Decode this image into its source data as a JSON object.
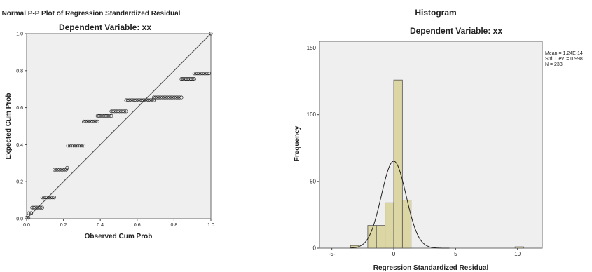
{
  "chart_data": [
    {
      "type": "scatter",
      "title": "Normal P-P Plot of Regression Standardized Residual",
      "subtitle": "Dependent Variable: xx",
      "xlabel": "Observed Cum Prob",
      "ylabel": "Expected Cum Prob",
      "xlim": [
        0,
        1
      ],
      "ylim": [
        0,
        1
      ],
      "xticks": [
        "0.0",
        "0.2",
        "0.4",
        "0.6",
        "0.8",
        "1.0"
      ],
      "yticks": [
        "0.0",
        "0.2",
        "0.4",
        "0.6",
        "0.8",
        "1.0"
      ],
      "reference_line": [
        [
          0,
          0
        ],
        [
          1,
          1
        ]
      ],
      "grid": false,
      "segments": [
        {
          "x": [
            0.0,
            0.01
          ],
          "y": 0.005
        },
        {
          "x": [
            0.012,
            0.025
          ],
          "y": 0.03
        },
        {
          "x": [
            0.03,
            0.085
          ],
          "y": 0.06
        },
        {
          "x": [
            0.085,
            0.15
          ],
          "y": 0.115
        },
        {
          "x": [
            0.15,
            0.215
          ],
          "y": 0.265
        },
        {
          "x": [
            0.225,
            0.31
          ],
          "y": 0.395
        },
        {
          "x": [
            0.31,
            0.385
          ],
          "y": 0.525
        },
        {
          "x": [
            0.385,
            0.46
          ],
          "y": 0.555
        },
        {
          "x": [
            0.46,
            0.54
          ],
          "y": 0.58
        },
        {
          "x": [
            0.54,
            0.69
          ],
          "y": 0.64
        },
        {
          "x": [
            0.69,
            0.84
          ],
          "y": 0.655
        },
        {
          "x": [
            0.84,
            0.91
          ],
          "y": 0.755
        },
        {
          "x": [
            0.91,
            0.99
          ],
          "y": 0.785
        }
      ],
      "extra_points": [
        [
          0.22,
          0.275
        ],
        [
          1.0,
          1.0
        ]
      ]
    },
    {
      "type": "bar",
      "title": "Histogram",
      "subtitle": "Dependent Variable: xx",
      "xlabel": "Regression Standardized Residual",
      "ylabel": "Frequency",
      "xlim": [
        -6,
        12
      ],
      "ylim": [
        0,
        155
      ],
      "xticks": [
        {
          "value": -5,
          "label": "-5-"
        },
        {
          "value": 0,
          "label": "0"
        },
        {
          "value": 5,
          "label": "5"
        },
        {
          "value": 10,
          "label": "10"
        }
      ],
      "yticks": [
        0,
        50,
        100,
        150
      ],
      "bin_width": 0.7,
      "bins": [
        {
          "start": -3.5,
          "count": 2
        },
        {
          "start": -2.1,
          "count": 17
        },
        {
          "start": -1.4,
          "count": 17
        },
        {
          "start": -0.7,
          "count": 34
        },
        {
          "start": 0.0,
          "count": 126
        },
        {
          "start": 0.7,
          "count": 36
        },
        {
          "start": 9.8,
          "count": 1
        }
      ],
      "normal_curve": {
        "mean": 0,
        "sd": 0.998,
        "n": 233
      },
      "stats": {
        "mean": "Mean = 1.24E-14",
        "sd": "Std. Dev. = 0.998",
        "n": "N = 233"
      },
      "colors": {
        "bar_fill": "#dcd5a4",
        "bar_stroke": "#555555",
        "plot_bg": "#efefef"
      },
      "grid": false
    }
  ]
}
